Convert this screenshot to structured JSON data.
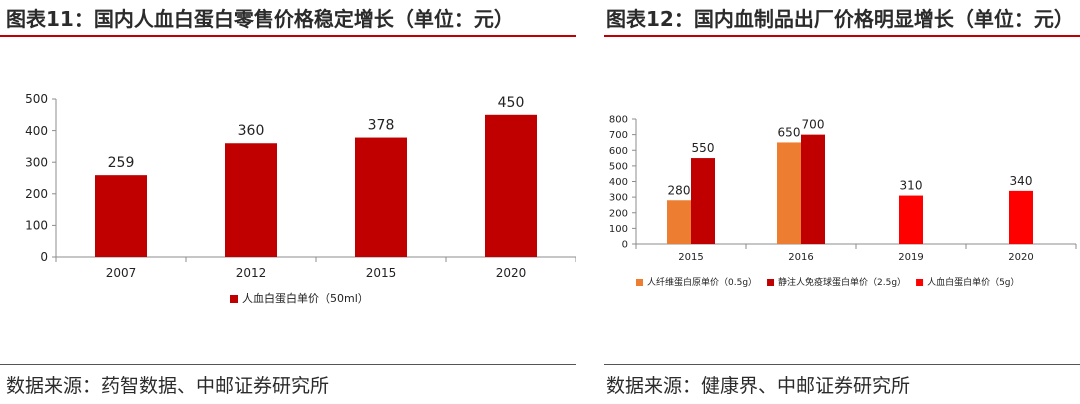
{
  "charts": [
    {
      "figure_title": "图表11：国内人血白蛋白零售价格稳定增长（单位：元）",
      "source": "数据来源：药智数据、中邮证券研究所"
    },
    {
      "figure_title": "图表12：国内血制品出厂价格明显增长（单位：元）",
      "source": "数据来源：健康界、中邮证券研究所"
    }
  ],
  "colors": {
    "title_rule": "#c00000",
    "bar_dark_red": "#c00000",
    "bar_orange": "#ed7d31",
    "bar_red": "#ff0000"
  },
  "chart_data": [
    {
      "type": "bar",
      "categories": [
        "2007",
        "2012",
        "2015",
        "2020"
      ],
      "series": [
        {
          "name": "人血白蛋白单价（50ml）",
          "values": [
            259,
            360,
            378,
            450
          ],
          "color": "#c00000"
        }
      ],
      "ylim": [
        0,
        500
      ],
      "yticks": [
        0,
        100,
        200,
        300,
        400,
        500
      ],
      "data_labels": true,
      "grid": false,
      "legend": "bottom"
    },
    {
      "type": "bar",
      "categories": [
        "2015",
        "2016",
        "2019",
        "2020"
      ],
      "series": [
        {
          "name": "人纤维蛋白原单价（0.5g）",
          "values": [
            280,
            650,
            null,
            null
          ],
          "color": "#ed7d31"
        },
        {
          "name": "静注人免疫球蛋白单价（2.5g）",
          "values": [
            550,
            700,
            null,
            null
          ],
          "color": "#c00000"
        },
        {
          "name": "人血白蛋白单价（5g）",
          "values": [
            null,
            null,
            310,
            340
          ],
          "color": "#ff0000"
        }
      ],
      "ylim": [
        0,
        800
      ],
      "yticks": [
        0,
        100,
        200,
        300,
        400,
        500,
        600,
        700,
        800
      ],
      "data_labels": true,
      "grid": false,
      "legend": "bottom"
    }
  ]
}
